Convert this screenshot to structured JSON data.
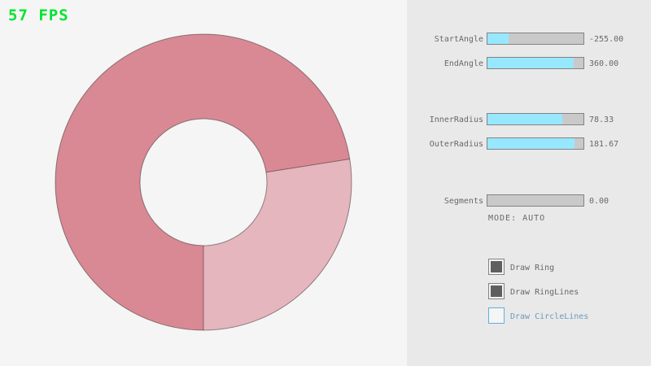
{
  "colors": {
    "bg_left": "#f5f5f5",
    "bg_panel": "#e9e9e9",
    "fps_green": "#00e430",
    "ring_dark": "#d98994",
    "ring_light": "#e5b6be",
    "ring_line": "#00000066",
    "slider_bg": "#c9c9c9",
    "slider_border": "#838383",
    "slider_fill": "#97e8ff",
    "text_gray": "#686868",
    "check_fill": "#5f5f5f",
    "focus_border": "#5bb2d9",
    "focus_text": "#6c9bbc"
  },
  "app": {
    "fps_label": "57 FPS"
  },
  "ring": {
    "start_angle": -255.0,
    "end_angle": 360.0,
    "inner_radius": 78.33,
    "outer_radius": 181.67,
    "segments": 0.0,
    "mode": "AUTO"
  },
  "panel": {
    "sliders": [
      {
        "label": "StartAngle",
        "value": "-255.00",
        "fraction": 0.217
      },
      {
        "label": "EndAngle",
        "value": "360.00",
        "fraction": 0.9
      },
      {
        "label": "InnerRadius",
        "value": "78.33",
        "fraction": 0.783
      },
      {
        "label": "OuterRadius",
        "value": "181.67",
        "fraction": 0.908
      },
      {
        "label": "Segments",
        "value": "0.00",
        "fraction": 0.0
      }
    ],
    "mode_text": "MODE: AUTO",
    "checkboxes": [
      {
        "label": "Draw Ring",
        "checked": true,
        "highlighted": false
      },
      {
        "label": "Draw RingLines",
        "checked": true,
        "highlighted": false
      },
      {
        "label": "Draw CircleLines",
        "checked": false,
        "highlighted": true
      }
    ]
  }
}
